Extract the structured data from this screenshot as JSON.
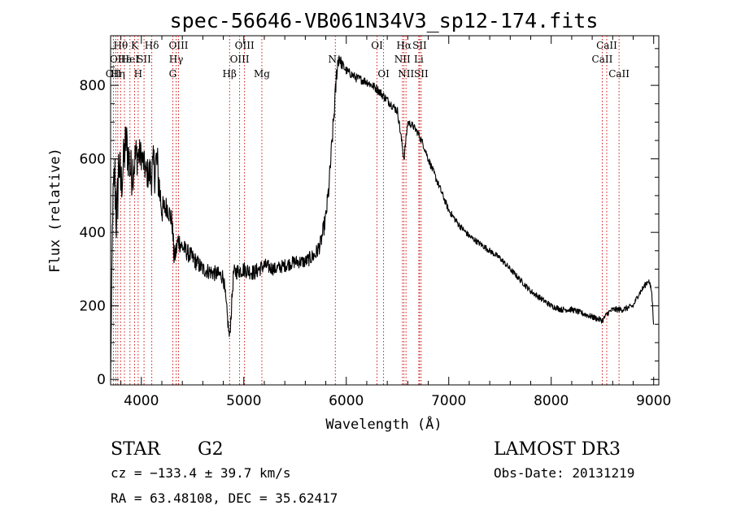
{
  "chart_data": {
    "type": "line",
    "title": "spec-56646-VB061N34V3_sp12-174.fits",
    "xlabel": "Wavelength (Å)",
    "ylabel": "Flux (relative)",
    "xlim": [
      3700,
      9050
    ],
    "ylim": [
      -15,
      935
    ],
    "xticks": [
      4000,
      5000,
      6000,
      7000,
      8000,
      9000
    ],
    "yticks": [
      0,
      200,
      400,
      600,
      800
    ],
    "xtick_labels": [
      "4000",
      "5000",
      "6000",
      "7000",
      "8000",
      "9000"
    ],
    "ytick_labels": [
      "0",
      "200",
      "400",
      "600",
      "800"
    ],
    "grid": false,
    "series": [
      {
        "style": "noisy-line",
        "x": [
          3700,
          3720,
          3740,
          3760,
          3780,
          3800,
          3850,
          3900,
          3950,
          4000,
          4050,
          4100,
          4150,
          4200,
          4250,
          4300,
          4320,
          4340,
          4360,
          4400,
          4500,
          4600,
          4700,
          4800,
          4861,
          4900,
          5000,
          5100,
          5200,
          5300,
          5400,
          5500,
          5600,
          5700,
          5750,
          5800,
          5830,
          5850,
          5870,
          5890,
          5910,
          5930,
          5950,
          6000,
          6050,
          6100,
          6200,
          6300,
          6400,
          6500,
          6563,
          6600,
          6650,
          6700,
          6750,
          6800,
          6900,
          7000,
          7100,
          7200,
          7300,
          7400,
          7500,
          7600,
          7700,
          7800,
          7900,
          8000,
          8100,
          8200,
          8300,
          8400,
          8500,
          8550,
          8600,
          8700,
          8800,
          8850,
          8900,
          8950,
          8980,
          9000
        ],
        "y": [
          0,
          460,
          560,
          420,
          600,
          520,
          650,
          560,
          610,
          610,
          560,
          560,
          590,
          460,
          470,
          430,
          330,
          350,
          380,
          360,
          330,
          300,
          290,
          280,
          110,
          290,
          300,
          290,
          310,
          300,
          310,
          320,
          320,
          340,
          370,
          440,
          520,
          600,
          680,
          760,
          850,
          880,
          860,
          840,
          830,
          820,
          810,
          790,
          760,
          730,
          600,
          700,
          690,
          670,
          640,
          600,
          530,
          460,
          420,
          390,
          370,
          350,
          330,
          300,
          270,
          240,
          220,
          200,
          190,
          190,
          180,
          170,
          160,
          180,
          190,
          190,
          200,
          230,
          250,
          270,
          240,
          150
        ],
        "noise": [
          0,
          60,
          90,
          110,
          80,
          70,
          70,
          70,
          60,
          40,
          40,
          60,
          80,
          40,
          30,
          30,
          30,
          30,
          30,
          25,
          25,
          22,
          22,
          22,
          20,
          22,
          22,
          22,
          20,
          18,
          18,
          18,
          18,
          22,
          22,
          25,
          30,
          30,
          30,
          30,
          30,
          25,
          15,
          12,
          12,
          12,
          12,
          12,
          12,
          12,
          12,
          10,
          10,
          10,
          10,
          10,
          10,
          9,
          9,
          8,
          8,
          8,
          8,
          8,
          8,
          8,
          8,
          8,
          8,
          8,
          8,
          8,
          8,
          8,
          8,
          8,
          8,
          8,
          8,
          8,
          8,
          8
        ]
      }
    ],
    "lines": [
      {
        "x": 3727,
        "labels": [
          {
            "text": "OII",
            "row": 3
          }
        ]
      },
      {
        "x": 3750,
        "labels": [
          {
            "text": "OI",
            "row": 2
          }
        ]
      },
      {
        "x": 3770,
        "labels": [
          {
            "text": "Hη",
            "row": 3
          }
        ]
      },
      {
        "x": 3798,
        "labels": [
          {
            "text": "Hθ",
            "row": 1
          }
        ]
      },
      {
        "x": 3835,
        "labels": [
          {
            "text": "Hε",
            "row": 2
          }
        ]
      },
      {
        "x": 3889,
        "labels": [
          {
            "text": "HeI",
            "row": 2
          }
        ]
      },
      {
        "x": 3934,
        "labels": [
          {
            "text": "K",
            "row": 1
          }
        ]
      },
      {
        "x": 3969,
        "labels": [
          {
            "text": "H",
            "row": 3
          }
        ]
      },
      {
        "x": 4026,
        "labels": [
          {
            "text": "SII",
            "row": 2
          }
        ]
      },
      {
        "x": 4102,
        "labels": [
          {
            "text": "Hδ",
            "row": 1
          }
        ]
      },
      {
        "x": 4307,
        "labels": [
          {
            "text": "G",
            "row": 3
          }
        ]
      },
      {
        "x": 4340,
        "labels": [
          {
            "text": "Hγ",
            "row": 2
          }
        ]
      },
      {
        "x": 4363,
        "labels": [
          {
            "text": "OIII",
            "row": 1
          }
        ]
      },
      {
        "x": 4861,
        "labels": [
          {
            "text": "Hβ",
            "row": 3
          }
        ]
      },
      {
        "x": 4959,
        "labels": [
          {
            "text": "OIII",
            "row": 2
          }
        ]
      },
      {
        "x": 5007,
        "labels": [
          {
            "text": "OIII",
            "row": 1
          }
        ]
      },
      {
        "x": 5176,
        "labels": [
          {
            "text": "Mg",
            "row": 3
          }
        ]
      },
      {
        "x": 5893,
        "labels": [
          {
            "text": "Na",
            "row": 2
          }
        ]
      },
      {
        "x": 6300,
        "labels": [
          {
            "text": "OI",
            "row": 1
          }
        ]
      },
      {
        "x": 6364,
        "labels": [
          {
            "text": "OI",
            "row": 3
          }
        ]
      },
      {
        "x": 6548,
        "labels": [
          {
            "text": "NII",
            "row": 2
          }
        ]
      },
      {
        "x": 6563,
        "labels": [
          {
            "text": "Hα",
            "row": 1
          }
        ]
      },
      {
        "x": 6583,
        "labels": [
          {
            "text": "NII",
            "row": 3
          }
        ]
      },
      {
        "x": 6708,
        "labels": [
          {
            "text": "Li",
            "row": 2
          }
        ]
      },
      {
        "x": 6716,
        "labels": [
          {
            "text": "SII",
            "row": 1
          }
        ]
      },
      {
        "x": 6731,
        "labels": [
          {
            "text": "SII",
            "row": 3
          }
        ]
      },
      {
        "x": 8498,
        "labels": [
          {
            "text": "CaII",
            "row": 2
          }
        ]
      },
      {
        "x": 8542,
        "labels": [
          {
            "text": "CaII",
            "row": 1
          }
        ]
      },
      {
        "x": 8662,
        "labels": [
          {
            "text": "CaII",
            "row": 3
          }
        ]
      }
    ]
  },
  "info": {
    "class_label": "STAR",
    "subclass": "G2",
    "survey": "LAMOST DR3",
    "cz_line": "cz = −133.4 ± 39.7 km/s",
    "obs_date": "Obs-Date: 20131219",
    "coords": "RA =  63.48108, DEC =  35.62417"
  }
}
